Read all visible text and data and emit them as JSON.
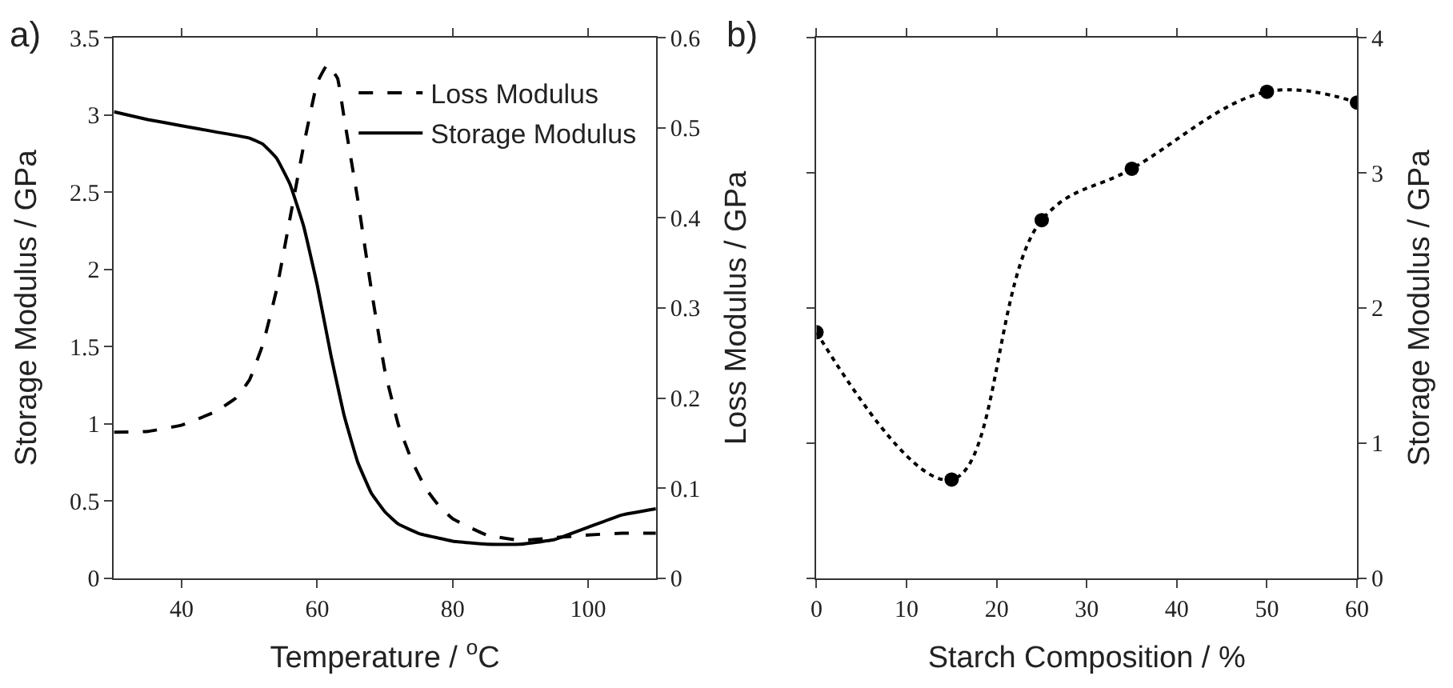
{
  "chart_data": [
    {
      "type": "line",
      "title": "a)",
      "xlabel": "Temperature / $^{o}$C",
      "ylabel": "Storage Modulus / GPa",
      "y2label": "Loss Modulus / GPa",
      "xlim": [
        30,
        110
      ],
      "xticks": [
        40,
        60,
        80,
        100
      ],
      "ylim": [
        0,
        3.5
      ],
      "yticks": [
        0,
        0.5,
        1,
        1.5,
        2,
        2.5,
        3,
        3.5
      ],
      "y2lim": [
        0,
        0.6
      ],
      "y2ticks": [
        0,
        0.1,
        0.2,
        0.3,
        0.4,
        0.5,
        0.6
      ],
      "legend": "top right",
      "marker": "none",
      "series": [
        {
          "name": "Loss Modulus",
          "color": "#000000",
          "axis": "y2",
          "line_style": "dashed",
          "x": [
            30,
            35,
            40,
            45,
            48,
            50,
            52,
            54,
            56,
            58,
            60,
            61.5,
            63,
            64,
            66,
            68,
            70,
            72,
            74,
            76,
            78,
            80,
            85,
            90,
            95,
            100,
            105,
            110
          ],
          "values": [
            0.162,
            0.163,
            0.17,
            0.185,
            0.2,
            0.22,
            0.26,
            0.32,
            0.4,
            0.48,
            0.55,
            0.57,
            0.555,
            0.51,
            0.42,
            0.32,
            0.23,
            0.17,
            0.13,
            0.1,
            0.08,
            0.066,
            0.048,
            0.042,
            0.045,
            0.048,
            0.05,
            0.05
          ]
        },
        {
          "name": "Storage Modulus",
          "color": "#000000",
          "axis": "y",
          "line_style": "solid",
          "x": [
            30,
            35,
            40,
            45,
            50,
            52,
            54,
            56,
            58,
            60,
            62,
            64,
            66,
            68,
            70,
            72,
            75,
            80,
            85,
            90,
            95,
            100,
            105,
            110
          ],
          "values": [
            3.02,
            2.97,
            2.93,
            2.89,
            2.85,
            2.81,
            2.72,
            2.55,
            2.28,
            1.9,
            1.45,
            1.05,
            0.75,
            0.55,
            0.43,
            0.35,
            0.29,
            0.24,
            0.22,
            0.22,
            0.25,
            0.33,
            0.41,
            0.45
          ]
        }
      ]
    },
    {
      "type": "line",
      "title": "b)",
      "xlabel": "Starch Composition / %",
      "y2label": "Storage Modulus / GPa",
      "xlim": [
        0,
        60
      ],
      "xticks": [
        0,
        10,
        20,
        30,
        40,
        50,
        60
      ],
      "y2lim": [
        0,
        4
      ],
      "y2ticks": [
        0,
        1,
        2,
        3,
        4
      ],
      "legend": false,
      "marker": "circle",
      "line_style": "dotted",
      "series": [
        {
          "color": "#000000",
          "axis": "y2",
          "x": [
            0,
            15,
            25,
            35,
            50,
            60
          ],
          "values": [
            1.82,
            0.73,
            2.65,
            3.03,
            3.6,
            3.52
          ]
        }
      ]
    }
  ]
}
